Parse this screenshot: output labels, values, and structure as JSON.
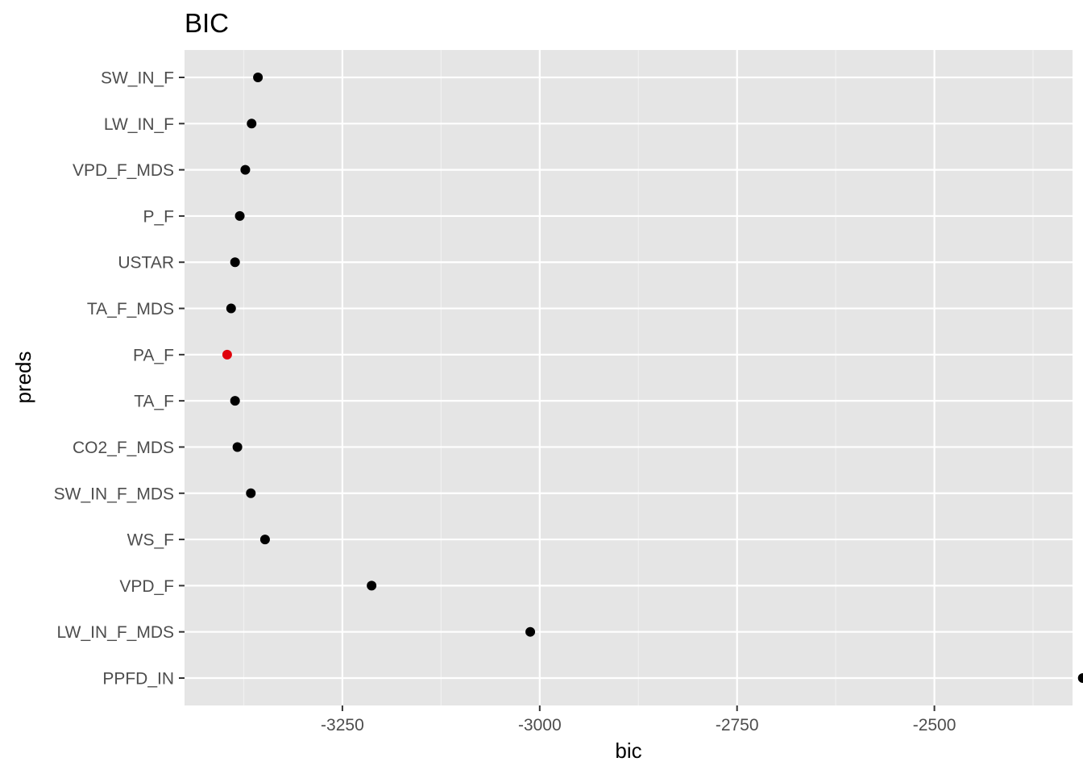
{
  "chart_data": {
    "type": "scatter",
    "title": "BIC",
    "xlabel": "bic",
    "ylabel": "preds",
    "xlim": [
      -3450,
      -2325
    ],
    "x_ticks": [
      -3250,
      -3000,
      -2750,
      -2500
    ],
    "x_tick_labels": [
      "-3250",
      "-3000",
      "-2750",
      "-2500"
    ],
    "grid": true,
    "categories": [
      "SW_IN_F",
      "LW_IN_F",
      "VPD_F_MDS",
      "P_F",
      "USTAR",
      "TA_F_MDS",
      "PA_F",
      "TA_F",
      "CO2_F_MDS",
      "SW_IN_F_MDS",
      "WS_F",
      "VPD_F",
      "LW_IN_F_MDS",
      "PPFD_IN"
    ],
    "values": [
      -3357,
      -3365,
      -3373,
      -3380,
      -3386,
      -3391,
      -3396,
      -3386,
      -3383,
      -3366,
      -3348,
      -3213,
      -3012,
      -2312
    ],
    "highlight_index": 6,
    "colors": {
      "point": "#000000",
      "highlight": "#e0000a",
      "panel": "#e5e5e5",
      "grid_major": "#ffffff",
      "grid_minor": "#f0f0f0"
    }
  }
}
